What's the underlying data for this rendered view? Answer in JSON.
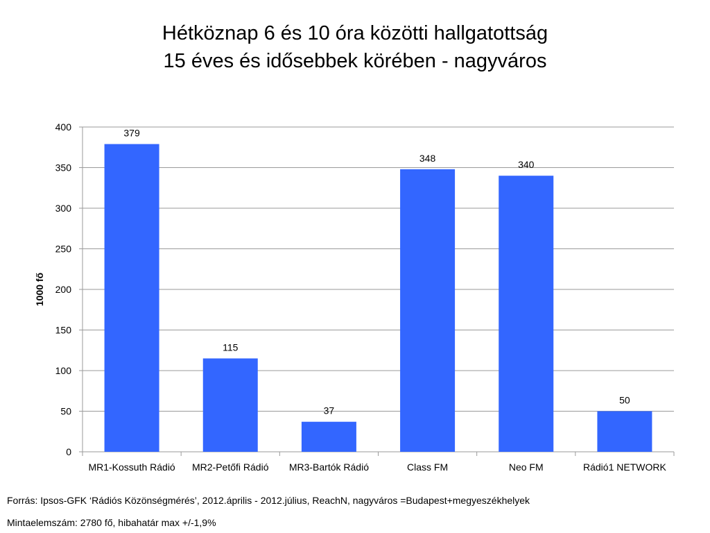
{
  "chart_data": {
    "type": "bar",
    "title_line1": "Hétköznap 6 és 10 óra közötti hallgatottság",
    "title_line2": "15 éves és idősebbek körében - nagyváros",
    "ylabel": "1000 fő",
    "xlabel": "",
    "categories": [
      "MR1-Kossuth Rádió",
      "MR2-Petőfi Rádió",
      "MR3-Bartók Rádió",
      "Class FM",
      "Neo FM",
      "Rádió1 NETWORK"
    ],
    "values": [
      379,
      115,
      37,
      348,
      340,
      50
    ],
    "data_labels": [
      "379",
      "115",
      "37",
      "348",
      "340",
      "50"
    ],
    "ylim": [
      0,
      400
    ],
    "yticks": [
      0,
      50,
      100,
      150,
      200,
      250,
      300,
      350,
      400
    ],
    "grid": true,
    "legend": "none",
    "bar_color": "#3366ff"
  },
  "footer": {
    "source": "Forrás: Ipsos-GFK ‘Rádiós Közönségmérés’, 2012.április - 2012.július, ReachN,  nagyváros =Budapest+megyeszékhelyek",
    "sample": "Mintaelemszám: 2780 fő, hibahatár max +/-1,9%"
  }
}
